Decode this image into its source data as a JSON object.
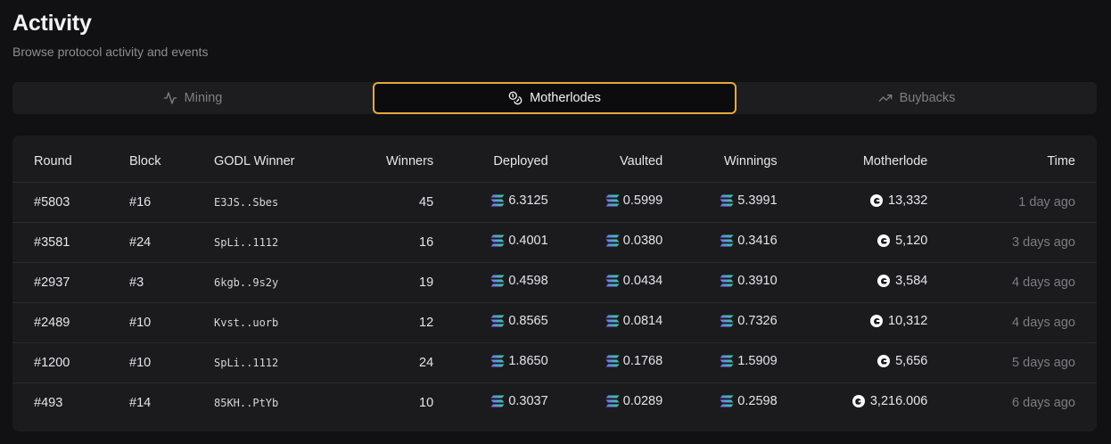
{
  "header": {
    "title": "Activity",
    "subtitle": "Browse protocol activity and events"
  },
  "tabs": [
    {
      "label": "Mining",
      "icon": "activity-icon",
      "active": false
    },
    {
      "label": "Motherlodes",
      "icon": "coins-icon",
      "active": true
    },
    {
      "label": "Buybacks",
      "icon": "trending-up-icon",
      "active": false
    }
  ],
  "colors": {
    "accent": "#e6a93a",
    "background": "#111113",
    "card": "#1b1b1e"
  },
  "table": {
    "columns": [
      "Round",
      "Block",
      "GODL Winner",
      "Winners",
      "Deployed",
      "Vaulted",
      "Winnings",
      "Motherlode",
      "Time"
    ],
    "rows": [
      {
        "round": "#5803",
        "block": "#16",
        "winner": "E3JS..Sbes",
        "winners": "45",
        "deployed": "6.3125",
        "vaulted": "0.5999",
        "winnings": "5.3991",
        "motherlode": "13,332",
        "time": "1 day ago"
      },
      {
        "round": "#3581",
        "block": "#24",
        "winner": "SpLi..1112",
        "winners": "16",
        "deployed": "0.4001",
        "vaulted": "0.0380",
        "winnings": "0.3416",
        "motherlode": "5,120",
        "time": "3 days ago"
      },
      {
        "round": "#2937",
        "block": "#3",
        "winner": "6kgb..9s2y",
        "winners": "19",
        "deployed": "0.4598",
        "vaulted": "0.0434",
        "winnings": "0.3910",
        "motherlode": "3,584",
        "time": "4 days ago"
      },
      {
        "round": "#2489",
        "block": "#10",
        "winner": "Kvst..uorb",
        "winners": "12",
        "deployed": "0.8565",
        "vaulted": "0.0814",
        "winnings": "0.7326",
        "motherlode": "10,312",
        "time": "4 days ago"
      },
      {
        "round": "#1200",
        "block": "#10",
        "winner": "SpLi..1112",
        "winners": "24",
        "deployed": "1.8650",
        "vaulted": "0.1768",
        "winnings": "1.5909",
        "motherlode": "5,656",
        "time": "5 days ago"
      },
      {
        "round": "#493",
        "block": "#14",
        "winner": "85KH..PtYb",
        "winners": "10",
        "deployed": "0.3037",
        "vaulted": "0.0289",
        "winnings": "0.2598",
        "motherlode": "3,216.006",
        "time": "6 days ago"
      }
    ]
  }
}
